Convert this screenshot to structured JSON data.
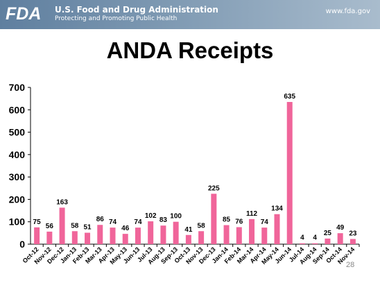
{
  "header": {
    "org_name": "U.S. Food and Drug Administration",
    "tagline": "Protecting and Promoting Public Health",
    "url": "www.fda.gov",
    "logo_text": "FDA"
  },
  "slide": {
    "title": "ANDA Receipts",
    "page_number": "28"
  },
  "colors": {
    "bar": "#f0659a",
    "header_bg": "#6f8dab"
  },
  "chart_data": {
    "type": "bar",
    "title": "",
    "xlabel": "",
    "ylabel": "",
    "ylim": [
      0,
      700
    ],
    "yticks": [
      0,
      100,
      200,
      300,
      400,
      500,
      600,
      700
    ],
    "grid": false,
    "categories": [
      "Oct-12",
      "Nov-12",
      "Dec-12",
      "Jan-13",
      "Feb-13",
      "Mar-13",
      "Apr-13",
      "May-13",
      "Jun-13",
      "Jul-13",
      "Aug-13",
      "Sep-13",
      "Oct-13",
      "Nov-13",
      "Dec-13",
      "Jan-14",
      "Feb-14",
      "Mar-14",
      "Apr-14",
      "May-14",
      "Jun-14",
      "Jul-14",
      "Aug-14",
      "Sep-14",
      "Oct-14",
      "Nov-14"
    ],
    "values": [
      75,
      56,
      163,
      58,
      51,
      86,
      74,
      46,
      74,
      102,
      83,
      100,
      41,
      58,
      225,
      85,
      76,
      112,
      74,
      134,
      635,
      4,
      4,
      25,
      49,
      23
    ]
  }
}
